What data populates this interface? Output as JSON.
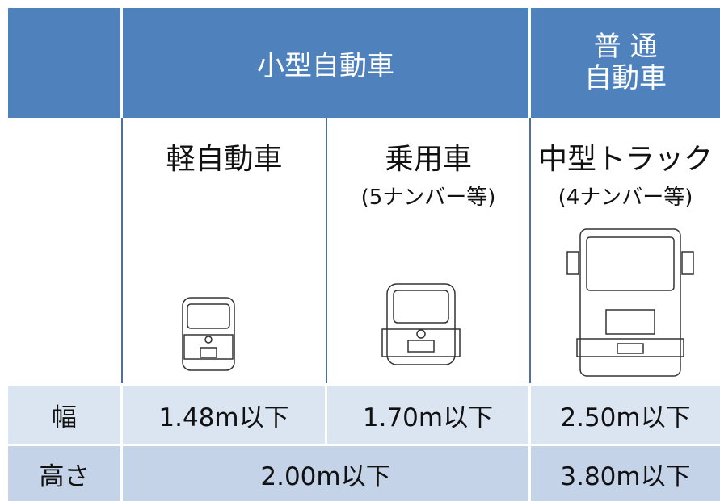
{
  "table": {
    "group_headers": {
      "small": "小型自動車",
      "regular": [
        "普 通",
        "自動車"
      ]
    },
    "columns": [
      {
        "name": "軽自動車"
      },
      {
        "name": "乗用車",
        "note": "(5ナンバー等)"
      },
      {
        "name": "中型トラック",
        "note": "(4ナンバー等)"
      }
    ],
    "rows": [
      {
        "label": "幅",
        "values": [
          "1.48m以下",
          "1.70m以下",
          "2.50m以下"
        ]
      },
      {
        "label": "高さ",
        "values": [
          "2.00m以下",
          "3.80m以下"
        ]
      }
    ]
  }
}
